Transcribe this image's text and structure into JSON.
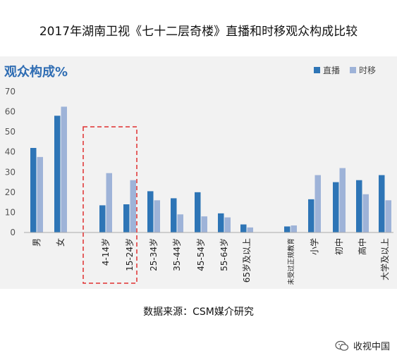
{
  "header": {
    "title": "2017年湖南卫视《七十二层奇楼》直播和时移观众构成比较"
  },
  "chart_data": {
    "type": "bar",
    "title": "观众构成%",
    "categories": [
      "男",
      "女",
      "4-14岁",
      "15-24岁",
      "25-34岁",
      "35-44岁",
      "45-54岁",
      "55-64岁",
      "65岁及以上",
      "未受过正规教育",
      "小学",
      "初中",
      "高中",
      "大学及以上"
    ],
    "series": [
      {
        "name": "直播",
        "color": "#2e75b6",
        "values": [
          42,
          58,
          13.5,
          14,
          20.5,
          17,
          20,
          9.5,
          4,
          3,
          16.5,
          25,
          26,
          28.5
        ]
      },
      {
        "name": "时移",
        "color": "#9eb3d8",
        "values": [
          37.5,
          62.5,
          29.5,
          26,
          16,
          9,
          8,
          7.5,
          2.5,
          3.5,
          28.5,
          32,
          19,
          16
        ]
      }
    ],
    "ylim": [
      0,
      70
    ],
    "yticks": [
      0,
      10,
      20,
      30,
      40,
      50,
      60,
      70
    ],
    "legend_position": "top-right",
    "grid": false,
    "highlight_box": "4-14岁 to 15-24岁, red dashed"
  },
  "footer": {
    "source": "数据来源：CSM媒介研究",
    "watermark": "收视中国",
    "watermark_icon": "wechat-icon"
  }
}
